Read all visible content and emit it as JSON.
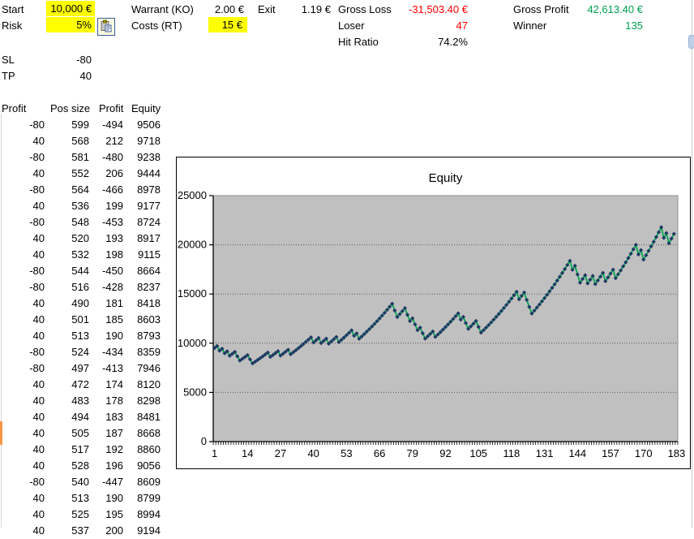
{
  "colors": {
    "highlight": "#FFFF00",
    "negative_text": "#FF0000",
    "positive_text": "#00A050"
  },
  "icons": {
    "paste": "clipboard-paste-icon"
  },
  "params": {
    "start_label": "Start",
    "start_value": "10,000 €",
    "risk_label": "Risk",
    "risk_value": "5%",
    "warrant_label": "Warrant (KO)",
    "warrant_value": "2.00 €",
    "costs_label": "Costs (RT)",
    "costs_value": "15 €",
    "exit_label": "Exit",
    "exit_value": "1.19 €",
    "sl_label": "SL",
    "sl_value": "-80",
    "tp_label": "TP",
    "tp_value": "40"
  },
  "stats": {
    "gross_loss_label": "Gross Loss",
    "gross_loss_value": "-31,503.40 €",
    "loser_label": "Loser",
    "loser_value": "47",
    "hit_ratio_label": "Hit Ratio",
    "hit_ratio_value": "74.2%",
    "gross_profit_label": "Gross Profit",
    "gross_profit_value": "42,613.40 €",
    "winner_label": "Winner",
    "winner_value": "135"
  },
  "table": {
    "headers": [
      "Profit",
      "Pos size",
      "Profit",
      "Equity"
    ],
    "rows": [
      [
        -80,
        599,
        -494,
        9506
      ],
      [
        40,
        568,
        212,
        9718
      ],
      [
        -80,
        581,
        -480,
        9238
      ],
      [
        40,
        552,
        206,
        9444
      ],
      [
        -80,
        564,
        -466,
        8978
      ],
      [
        40,
        536,
        199,
        9177
      ],
      [
        -80,
        548,
        -453,
        8724
      ],
      [
        40,
        520,
        193,
        8917
      ],
      [
        40,
        532,
        198,
        9115
      ],
      [
        -80,
        544,
        -450,
        8664
      ],
      [
        -80,
        516,
        -428,
        8237
      ],
      [
        40,
        490,
        181,
        8418
      ],
      [
        40,
        501,
        185,
        8603
      ],
      [
        40,
        513,
        190,
        8793
      ],
      [
        -80,
        524,
        -434,
        8359
      ],
      [
        -80,
        497,
        -413,
        7946
      ],
      [
        40,
        472,
        174,
        8120
      ],
      [
        40,
        483,
        178,
        8298
      ],
      [
        40,
        494,
        183,
        8481
      ],
      [
        40,
        505,
        187,
        8668
      ],
      [
        40,
        517,
        192,
        8860
      ],
      [
        40,
        528,
        196,
        9056
      ],
      [
        -80,
        540,
        -447,
        8609
      ],
      [
        40,
        513,
        190,
        8799
      ],
      [
        40,
        525,
        195,
        8994
      ],
      [
        40,
        537,
        200,
        9194
      ]
    ]
  },
  "chart_data": {
    "type": "line",
    "title": "Equity",
    "xlabel": "",
    "ylabel": "",
    "ylim": [
      0,
      25000
    ],
    "y_ticks": [
      0,
      5000,
      10000,
      15000,
      20000,
      25000
    ],
    "x_categories_total": 183,
    "x_tick_labels": [
      "1",
      "14",
      "27",
      "40",
      "53",
      "66",
      "79",
      "92",
      "105",
      "118",
      "131",
      "144",
      "157",
      "170",
      "183"
    ],
    "x_tick_positions": [
      1,
      14,
      27,
      40,
      53,
      66,
      79,
      92,
      105,
      118,
      131,
      144,
      157,
      170,
      183
    ],
    "grid": "horizontal-dotted",
    "legend": "none",
    "plot_bg": "#C0C0C0",
    "line_color": "#00A94F",
    "marker": "diamond",
    "marker_color": "#1F3864",
    "values": [
      9506,
      9718,
      9238,
      9444,
      8978,
      9177,
      8724,
      8917,
      9115,
      8664,
      8237,
      8418,
      8603,
      8793,
      8359,
      7946,
      8120,
      8298,
      8481,
      8668,
      8860,
      9056,
      8609,
      8799,
      8994,
      9194,
      8740,
      8934,
      9133,
      9337,
      8876,
      9073,
      9275,
      9482,
      9694,
      9911,
      10134,
      10362,
      10596,
      10073,
      10300,
      10532,
      10012,
      10237,
      10468,
      9951,
      10175,
      10404,
      10639,
      10113,
      10341,
      10574,
      10813,
      11058,
      11309,
      10750,
      10994,
      10451,
      10687,
      10929,
      11177,
      11431,
      11691,
      11958,
      12231,
      12511,
      12798,
      13092,
      13393,
      13702,
      14018,
      13325,
      12667,
      12958,
      13256,
      13561,
      12891,
      12254,
      12535,
      11916,
      11327,
      11585,
      11013,
      10469,
      10706,
      10948,
      11196,
      10643,
      10884,
      11131,
      11384,
      11643,
      11909,
      12181,
      12460,
      12746,
      13039,
      12395,
      12679,
      12053,
      11458,
      11719,
      11986,
      12260,
      11654,
      11078,
      11330,
      11588,
      11852,
      12123,
      12400,
      12684,
      12975,
      13273,
      13579,
      13892,
      14213,
      14542,
      14879,
      15224,
      14472,
      14807,
      15151,
      14403,
      13692,
      13016,
      13315,
      13622,
      13936,
      14258,
      14588,
      14926,
      15273,
      15628,
      15992,
      16365,
      16747,
      17139,
      17540,
      17951,
      18372,
      17465,
      17874,
      16991,
      16152,
      16529,
      16915,
      16079,
      16454,
      16838,
      16006,
      16379,
      16762,
      17154,
      16307,
      16688,
      17078,
      17478,
      16615,
      17003,
      17401,
      17809,
      18227,
      18655,
      19094,
      19544,
      20005,
      19017,
      19465,
      18504,
      18939,
      19385,
      19842,
      20310,
      20790,
      21281,
      21785,
      20709,
      21198,
      20151,
      20627,
      21114
    ]
  }
}
